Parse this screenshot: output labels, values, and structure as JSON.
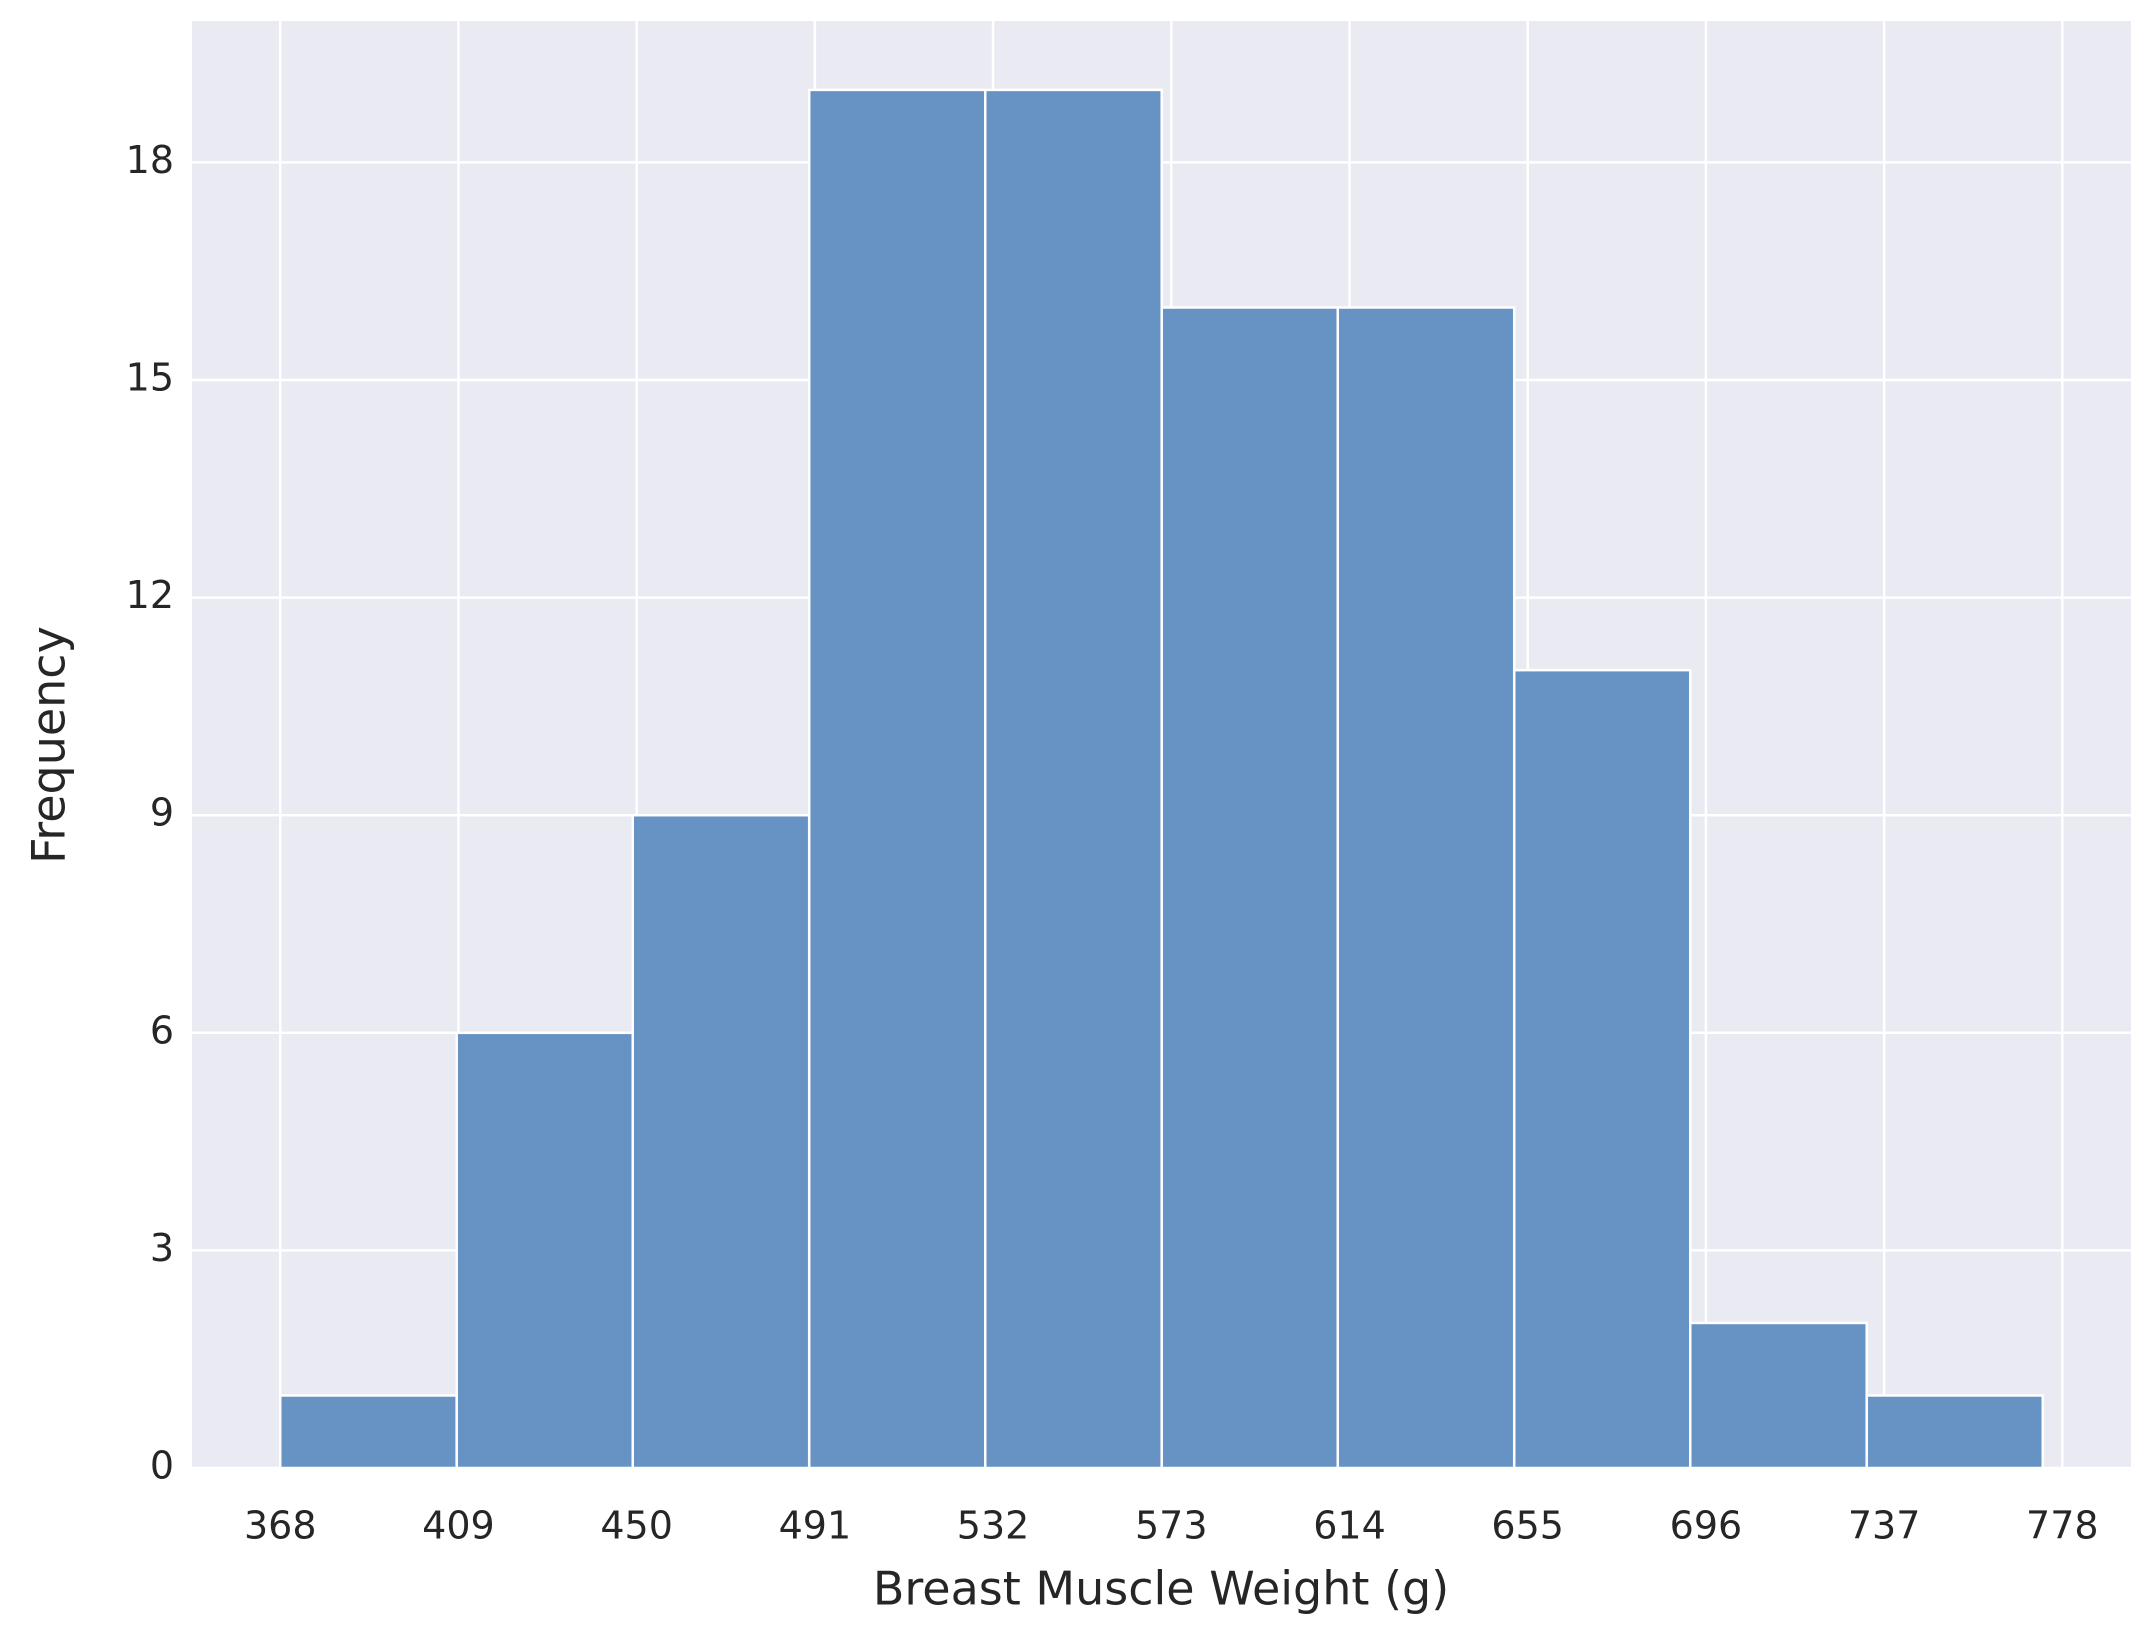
{
  "chart_data": {
    "type": "histogram",
    "xlabel": "Breast Muscle Weight (g)",
    "ylabel": "Frequency",
    "bins": [
      368.0,
      408.6,
      449.1,
      489.7,
      530.2,
      570.8,
      611.3,
      651.9,
      692.4,
      733.0,
      773.5
    ],
    "values": [
      1,
      6,
      9,
      19,
      19,
      16,
      16,
      11,
      2,
      1
    ],
    "color": "#6793c4",
    "xlim": [
      347.7,
      793.8
    ],
    "xticks": [
      368,
      409,
      450,
      491,
      532,
      573,
      614,
      655,
      696,
      737,
      778
    ],
    "ylim": [
      0,
      19.95
    ],
    "yticks": [
      0,
      3,
      6,
      9,
      12,
      15,
      18
    ],
    "grid": true
  }
}
